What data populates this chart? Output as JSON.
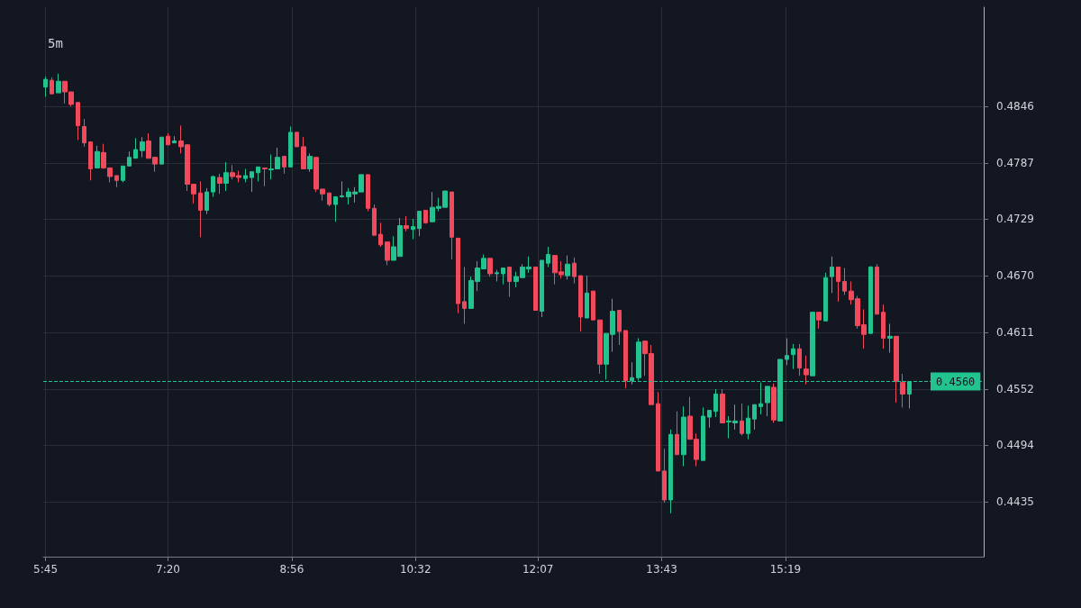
{
  "chart_data": {
    "type": "candlestick",
    "title": "5m",
    "x": [
      5.75,
      5.8333,
      5.9167,
      6,
      6.0833,
      6.1667,
      6.25,
      6.3333,
      6.4167,
      6.5,
      6.5833,
      6.6667,
      6.75,
      6.8333,
      6.9167,
      7,
      7.0833,
      7.1667,
      7.25,
      7.3333,
      7.4167,
      7.5,
      7.5833,
      7.6667,
      7.75,
      7.8333,
      7.9167,
      8,
      8.0833,
      8.1667,
      8.25,
      8.3333,
      8.4167,
      8.5,
      8.5833,
      8.6667,
      8.75,
      8.8333,
      8.9167,
      9,
      9.0833,
      9.1667,
      9.25,
      9.3333,
      9.4167,
      9.5,
      9.5833,
      9.6667,
      9.75,
      9.8333,
      9.9167,
      10,
      10.0833,
      10.1667,
      10.25,
      10.3333,
      10.4167,
      10.5,
      10.5833,
      10.6667,
      10.75,
      10.8333,
      10.9167,
      11,
      11.0833,
      11.1667,
      11.25,
      11.3333,
      11.4167,
      11.5,
      11.5833,
      11.6667,
      11.75,
      11.8333,
      11.9167,
      12,
      12.0833,
      12.1667,
      12.25,
      12.3333,
      12.4167,
      12.5,
      12.5833,
      12.6667,
      12.75,
      12.8333,
      12.9167,
      13,
      13.0833,
      13.1667,
      13.25,
      13.3333,
      13.4167,
      13.5,
      13.5833,
      13.6667,
      13.75,
      13.8333,
      13.9167,
      14,
      14.0833,
      14.1667,
      14.25,
      14.3333,
      14.4167,
      14.5,
      14.5833,
      14.6667,
      14.75,
      14.8333,
      14.9167,
      15,
      15.0833,
      15.1667,
      15.25,
      15.3333,
      15.4167,
      15.5,
      15.5833,
      15.6667,
      15.75,
      15.8333,
      15.9167,
      16,
      16.0833,
      16.1667,
      16.25,
      16.3333,
      16.4167,
      16.5,
      16.5833,
      16.6667,
      16.75,
      16.8333,
      16.9167
    ],
    "ohlc": [
      [
        0.4866,
        0.4877,
        0.4856,
        0.4874
      ],
      [
        0.4873,
        0.4876,
        0.4859,
        0.4859
      ],
      [
        0.486,
        0.488,
        0.486,
        0.4872
      ],
      [
        0.4872,
        0.4872,
        0.4849,
        0.4861
      ],
      [
        0.4861,
        0.4861,
        0.4846,
        0.4848
      ],
      [
        0.485,
        0.485,
        0.4811,
        0.4826
      ],
      [
        0.4825,
        0.4833,
        0.4804,
        0.4808
      ],
      [
        0.4809,
        0.4809,
        0.4769,
        0.4781
      ],
      [
        0.4782,
        0.4805,
        0.4782,
        0.4799
      ],
      [
        0.4798,
        0.4807,
        0.4781,
        0.4782
      ],
      [
        0.4782,
        0.4782,
        0.4767,
        0.4773
      ],
      [
        0.4774,
        0.4774,
        0.4762,
        0.4769
      ],
      [
        0.4769,
        0.4784,
        0.4767,
        0.4784
      ],
      [
        0.4784,
        0.4799,
        0.4784,
        0.4793
      ],
      [
        0.4792,
        0.4813,
        0.4792,
        0.4801
      ],
      [
        0.48,
        0.4814,
        0.4793,
        0.4809
      ],
      [
        0.481,
        0.4818,
        0.4792,
        0.4792
      ],
      [
        0.4793,
        0.4793,
        0.4778,
        0.4786
      ],
      [
        0.4786,
        0.4814,
        0.4786,
        0.4814
      ],
      [
        0.4815,
        0.4818,
        0.4806,
        0.4806
      ],
      [
        0.4808,
        0.4815,
        0.4808,
        0.481
      ],
      [
        0.481,
        0.4826,
        0.4797,
        0.4804
      ],
      [
        0.4806,
        0.4806,
        0.4758,
        0.4765
      ],
      [
        0.4765,
        0.4765,
        0.4745,
        0.4755
      ],
      [
        0.4756,
        0.4768,
        0.471,
        0.4738
      ],
      [
        0.4738,
        0.4761,
        0.4734,
        0.4757
      ],
      [
        0.4757,
        0.4774,
        0.4752,
        0.4773
      ],
      [
        0.4772,
        0.4776,
        0.4755,
        0.4766
      ],
      [
        0.4766,
        0.4788,
        0.4758,
        0.4777
      ],
      [
        0.4777,
        0.4785,
        0.477,
        0.4773
      ],
      [
        0.4774,
        0.4779,
        0.4767,
        0.4772
      ],
      [
        0.4771,
        0.4781,
        0.4767,
        0.4774
      ],
      [
        0.4772,
        0.4778,
        0.4757,
        0.4778
      ],
      [
        0.4777,
        0.4783,
        0.4768,
        0.4783
      ],
      [
        0.4782,
        0.4782,
        0.4763,
        0.4781
      ],
      [
        0.478,
        0.4796,
        0.477,
        0.4781
      ],
      [
        0.4781,
        0.4803,
        0.4781,
        0.4793
      ],
      [
        0.4794,
        0.4794,
        0.4776,
        0.4783
      ],
      [
        0.4783,
        0.4825,
        0.4783,
        0.4819
      ],
      [
        0.4819,
        0.4819,
        0.4804,
        0.4804
      ],
      [
        0.4804,
        0.4814,
        0.4781,
        0.4781
      ],
      [
        0.4781,
        0.4797,
        0.4778,
        0.4794
      ],
      [
        0.4793,
        0.4793,
        0.4757,
        0.476
      ],
      [
        0.476,
        0.476,
        0.4748,
        0.4755
      ],
      [
        0.4756,
        0.4756,
        0.4742,
        0.4744
      ],
      [
        0.4744,
        0.4752,
        0.4726,
        0.4752
      ],
      [
        0.4752,
        0.4768,
        0.4751,
        0.4753
      ],
      [
        0.4752,
        0.4761,
        0.4744,
        0.4757
      ],
      [
        0.4755,
        0.4762,
        0.4746,
        0.4757
      ],
      [
        0.4757,
        0.4775,
        0.4757,
        0.4775
      ],
      [
        0.4775,
        0.4775,
        0.4737,
        0.474
      ],
      [
        0.474,
        0.4744,
        0.4712,
        0.4712
      ],
      [
        0.4713,
        0.4725,
        0.47,
        0.4702
      ],
      [
        0.4705,
        0.4705,
        0.4681,
        0.4686
      ],
      [
        0.4686,
        0.4711,
        0.4686,
        0.47
      ],
      [
        0.469,
        0.473,
        0.469,
        0.4722
      ],
      [
        0.4722,
        0.4732,
        0.4716,
        0.4719
      ],
      [
        0.4718,
        0.4729,
        0.4708,
        0.4721
      ],
      [
        0.4719,
        0.4737,
        0.4711,
        0.4737
      ],
      [
        0.4738,
        0.4738,
        0.4724,
        0.4725
      ],
      [
        0.4726,
        0.4757,
        0.4726,
        0.4741
      ],
      [
        0.474,
        0.4751,
        0.4737,
        0.4742
      ],
      [
        0.4741,
        0.4758,
        0.4741,
        0.4758
      ],
      [
        0.4757,
        0.4757,
        0.4687,
        0.471
      ],
      [
        0.4709,
        0.4709,
        0.4631,
        0.4641
      ],
      [
        0.4643,
        0.4679,
        0.462,
        0.4636
      ],
      [
        0.4636,
        0.4669,
        0.4636,
        0.4665
      ],
      [
        0.4664,
        0.4685,
        0.4654,
        0.4678
      ],
      [
        0.4677,
        0.4692,
        0.4677,
        0.4688
      ],
      [
        0.4688,
        0.4688,
        0.4669,
        0.4672
      ],
      [
        0.4672,
        0.4676,
        0.4664,
        0.4673
      ],
      [
        0.4672,
        0.4678,
        0.4661,
        0.4678
      ],
      [
        0.4679,
        0.4679,
        0.4648,
        0.4664
      ],
      [
        0.4664,
        0.4674,
        0.4658,
        0.4669
      ],
      [
        0.4668,
        0.4682,
        0.4668,
        0.4679
      ],
      [
        0.4677,
        0.469,
        0.4673,
        0.4679
      ],
      [
        0.4679,
        0.4679,
        0.4634,
        0.4634
      ],
      [
        0.4633,
        0.4686,
        0.4627,
        0.4686
      ],
      [
        0.4683,
        0.47,
        0.4679,
        0.4692
      ],
      [
        0.4691,
        0.4691,
        0.4661,
        0.4673
      ],
      [
        0.4674,
        0.4685,
        0.4667,
        0.4671
      ],
      [
        0.467,
        0.4691,
        0.4666,
        0.4682
      ],
      [
        0.4683,
        0.4689,
        0.4662,
        0.4669
      ],
      [
        0.467,
        0.467,
        0.4612,
        0.4627
      ],
      [
        0.4626,
        0.467,
        0.4626,
        0.4652
      ],
      [
        0.4654,
        0.4654,
        0.4624,
        0.4624
      ],
      [
        0.4624,
        0.4624,
        0.4568,
        0.4578
      ],
      [
        0.4578,
        0.461,
        0.4562,
        0.461
      ],
      [
        0.4609,
        0.4646,
        0.4591,
        0.4633
      ],
      [
        0.4634,
        0.4634,
        0.4598,
        0.4612
      ],
      [
        0.4613,
        0.4613,
        0.4553,
        0.4561
      ],
      [
        0.4561,
        0.458,
        0.4557,
        0.4564
      ],
      [
        0.4564,
        0.4605,
        0.4561,
        0.4601
      ],
      [
        0.4602,
        0.4602,
        0.4566,
        0.4589
      ],
      [
        0.4589,
        0.4598,
        0.4536,
        0.4536
      ],
      [
        0.4537,
        0.4549,
        0.4467,
        0.4467
      ],
      [
        0.4467,
        0.449,
        0.4434,
        0.4437
      ],
      [
        0.4437,
        0.451,
        0.4423,
        0.4505
      ],
      [
        0.4505,
        0.4529,
        0.4484,
        0.4484
      ],
      [
        0.4484,
        0.4534,
        0.4472,
        0.4523
      ],
      [
        0.4524,
        0.4544,
        0.45,
        0.45
      ],
      [
        0.45,
        0.4506,
        0.4472,
        0.4479
      ],
      [
        0.4478,
        0.4533,
        0.4478,
        0.4524
      ],
      [
        0.4523,
        0.453,
        0.4512,
        0.453
      ],
      [
        0.4529,
        0.4552,
        0.4523,
        0.4547
      ],
      [
        0.4547,
        0.4552,
        0.4517,
        0.4517
      ],
      [
        0.4518,
        0.4524,
        0.4501,
        0.4519
      ],
      [
        0.4517,
        0.4536,
        0.451,
        0.4519
      ],
      [
        0.4519,
        0.4537,
        0.4504,
        0.4506
      ],
      [
        0.4506,
        0.4535,
        0.45,
        0.4522
      ],
      [
        0.4521,
        0.4536,
        0.451,
        0.4536
      ],
      [
        0.4534,
        0.4559,
        0.4526,
        0.4537
      ],
      [
        0.4538,
        0.4555,
        0.4524,
        0.4555
      ],
      [
        0.4554,
        0.4558,
        0.4517,
        0.452
      ],
      [
        0.4519,
        0.4583,
        0.4519,
        0.4583
      ],
      [
        0.4583,
        0.4605,
        0.4577,
        0.4587
      ],
      [
        0.4588,
        0.4599,
        0.4573,
        0.4594
      ],
      [
        0.4594,
        0.4599,
        0.4566,
        0.4574
      ],
      [
        0.4573,
        0.4587,
        0.4557,
        0.4567
      ],
      [
        0.4566,
        0.4632,
        0.4566,
        0.4632
      ],
      [
        0.4632,
        0.4632,
        0.4615,
        0.4624
      ],
      [
        0.4623,
        0.4673,
        0.4623,
        0.4668
      ],
      [
        0.4669,
        0.469,
        0.4652,
        0.4679
      ],
      [
        0.4679,
        0.4679,
        0.4643,
        0.4664
      ],
      [
        0.4664,
        0.4678,
        0.465,
        0.4654
      ],
      [
        0.4654,
        0.4664,
        0.464,
        0.4645
      ],
      [
        0.4646,
        0.4649,
        0.4615,
        0.4618
      ],
      [
        0.4619,
        0.4635,
        0.4594,
        0.4609
      ],
      [
        0.461,
        0.468,
        0.461,
        0.4679
      ],
      [
        0.4679,
        0.4682,
        0.463,
        0.463
      ],
      [
        0.4632,
        0.464,
        0.4594,
        0.4605
      ],
      [
        0.4605,
        0.462,
        0.459,
        0.4607
      ],
      [
        0.4607,
        0.4607,
        0.4538,
        0.456
      ],
      [
        0.4559,
        0.4568,
        0.4533,
        0.4547
      ],
      [
        0.4547,
        0.456,
        0.4532,
        0.456
      ]
    ],
    "xlim": [
      5.72,
      17.88
    ],
    "xticks": [
      {
        "value": 5.75,
        "label": "5:45"
      },
      {
        "value": 7.3333,
        "label": "7:20"
      },
      {
        "value": 8.9333,
        "label": "8:56"
      },
      {
        "value": 10.5333,
        "label": "10:32"
      },
      {
        "value": 12.1167,
        "label": "12:07"
      },
      {
        "value": 13.7167,
        "label": "13:43"
      },
      {
        "value": 15.3167,
        "label": "15:19"
      }
    ],
    "ylim": [
      0.4378,
      0.4949
    ],
    "yticks": [
      0.4435,
      0.4494,
      0.4552,
      0.4611,
      {
        "value": 0.467,
        "label": "0.4670"
      },
      0.4729,
      0.4787,
      0.4846
    ],
    "ref_lines": [
      {
        "axis": "y",
        "value": 0.456,
        "label": "0.4560",
        "color": "#22c38e",
        "line_style": "dashed"
      }
    ],
    "grid": true
  }
}
